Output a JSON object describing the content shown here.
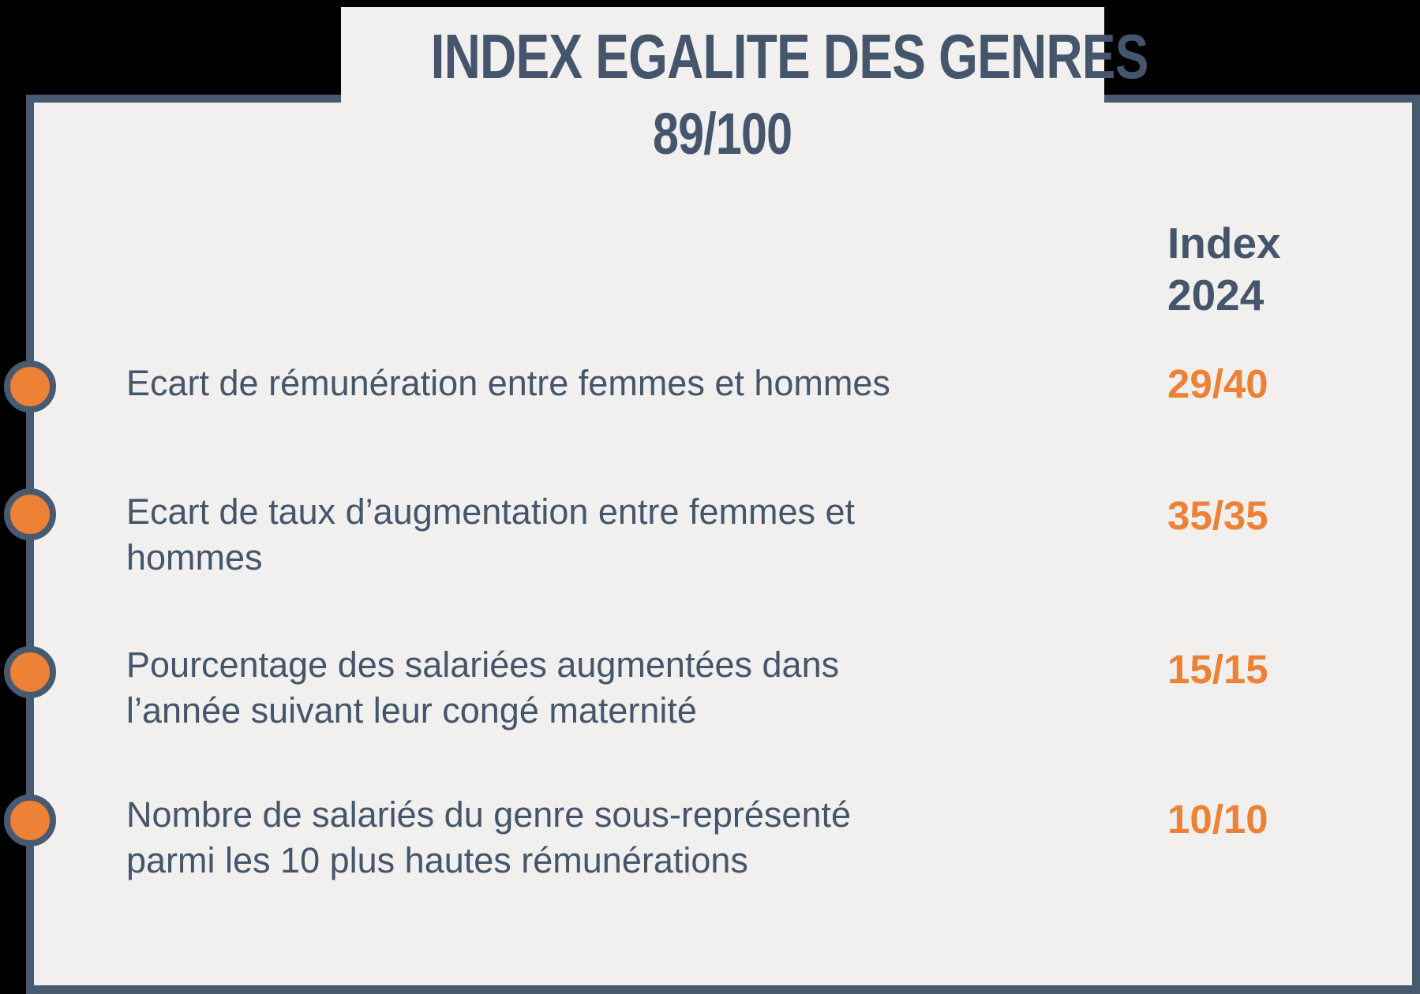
{
  "page": {
    "title_line1": "INDEX EGALITE DES GENRES",
    "title_line2": "89/100"
  },
  "colors": {
    "background": "#000000",
    "card_background": "#F1F0EE",
    "slate_text": "#45556B",
    "slate_border": "#475A70",
    "orange_accent": "#ED8136"
  },
  "table": {
    "column_header": "Index\n2024",
    "rows": [
      {
        "label": "Ecart de rémunération entre femmes et hommes",
        "value": "29/40"
      },
      {
        "label": "Ecart de taux d’augmentation entre femmes et\nhommes",
        "value": "35/35"
      },
      {
        "label": "Pourcentage des salariées augmentées dans\nl’année suivant leur congé maternité",
        "value": "15/15"
      },
      {
        "label": "Nombre de salariés du genre sous-représenté\nparmi les 10 plus hautes rémunérations",
        "value": "10/10"
      }
    ]
  }
}
